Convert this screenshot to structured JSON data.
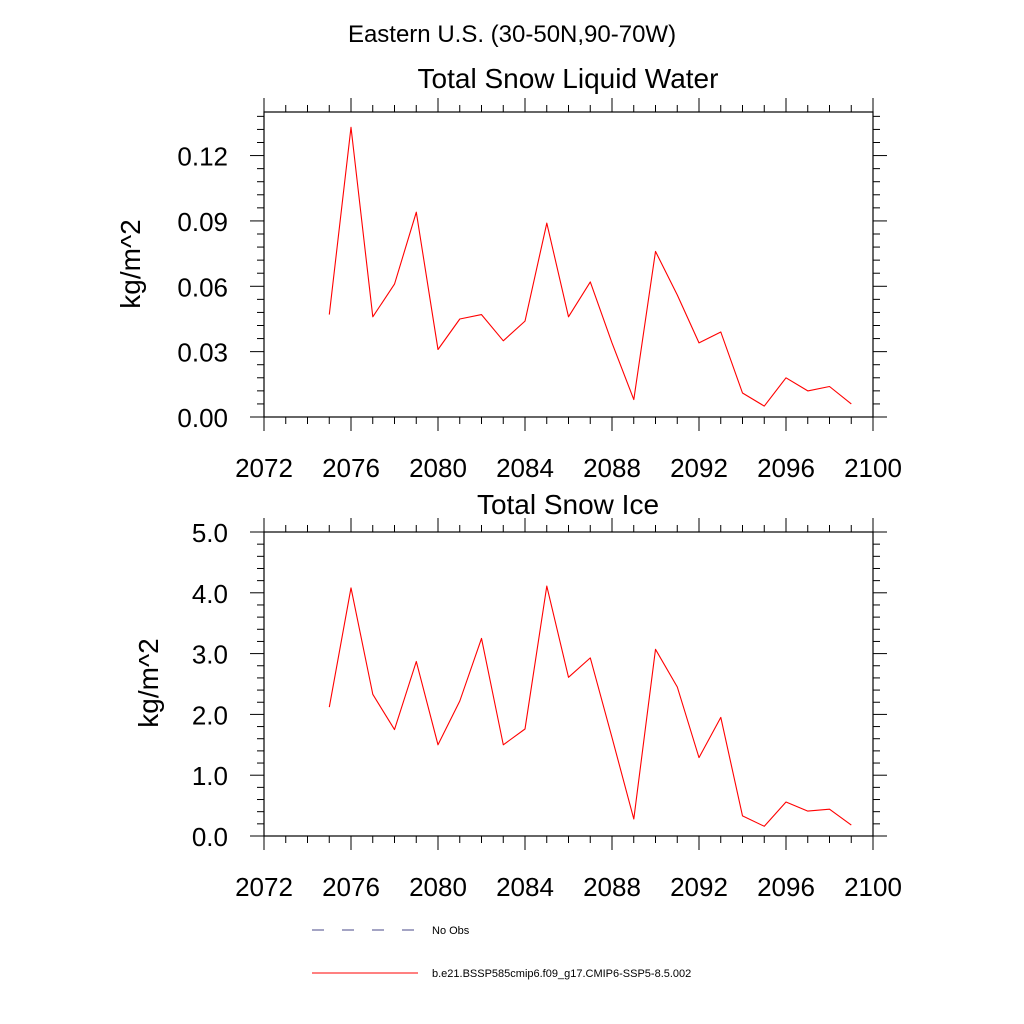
{
  "suptitle": "Eastern U.S. (30-50N,90-70W)",
  "chart_data": [
    {
      "type": "line",
      "title": "Total Snow Liquid Water",
      "ylabel": "kg/m^2",
      "xlabel": "",
      "xlim": [
        2072,
        2100
      ],
      "ylim": [
        0,
        0.14
      ],
      "xticks": [
        2072,
        2076,
        2080,
        2084,
        2088,
        2092,
        2096,
        2100
      ],
      "xtick_labels": [
        "2072",
        "2076",
        "2080",
        "2084",
        "2088",
        "2092",
        "2096",
        "2100"
      ],
      "yticks": [
        0,
        0.03,
        0.06,
        0.09,
        0.12
      ],
      "ytick_labels": [
        "0.00",
        "0.03",
        "0.06",
        "0.09",
        "0.12"
      ],
      "x": [
        2075,
        2076,
        2077,
        2078,
        2079,
        2080,
        2081,
        2082,
        2083,
        2084,
        2085,
        2086,
        2087,
        2088,
        2089,
        2090,
        2091,
        2092,
        2093,
        2094,
        2095,
        2096,
        2097,
        2098,
        2099
      ],
      "series": [
        {
          "name": "b.e21.BSSP585cmip6.f09_g17.CMIP6-SSP5-8.5.002",
          "color": "#ff0000",
          "values": [
            0.047,
            0.133,
            0.046,
            0.061,
            0.094,
            0.031,
            0.045,
            0.047,
            0.035,
            0.044,
            0.089,
            0.046,
            0.062,
            0.034,
            0.008,
            0.076,
            0.056,
            0.034,
            0.039,
            0.011,
            0.005,
            0.018,
            0.012,
            0.014,
            0.006
          ]
        }
      ]
    },
    {
      "type": "line",
      "title": "Total Snow Ice",
      "ylabel": "kg/m^2",
      "xlabel": "",
      "xlim": [
        2072,
        2100
      ],
      "ylim": [
        0,
        5
      ],
      "xticks": [
        2072,
        2076,
        2080,
        2084,
        2088,
        2092,
        2096,
        2100
      ],
      "xtick_labels": [
        "2072",
        "2076",
        "2080",
        "2084",
        "2088",
        "2092",
        "2096",
        "2100"
      ],
      "yticks": [
        0,
        1,
        2,
        3,
        4,
        5
      ],
      "ytick_labels": [
        "0.0",
        "1.0",
        "2.0",
        "3.0",
        "4.0",
        "5.0"
      ],
      "x": [
        2075,
        2076,
        2077,
        2078,
        2079,
        2080,
        2081,
        2082,
        2083,
        2084,
        2085,
        2086,
        2087,
        2088,
        2089,
        2090,
        2091,
        2092,
        2093,
        2094,
        2095,
        2096,
        2097,
        2098,
        2099
      ],
      "series": [
        {
          "name": "b.e21.BSSP585cmip6.f09_g17.CMIP6-SSP5-8.5.002",
          "color": "#ff0000",
          "values": [
            2.12,
            4.08,
            2.33,
            1.75,
            2.87,
            1.5,
            2.22,
            3.25,
            1.5,
            1.76,
            4.11,
            2.61,
            2.93,
            1.62,
            0.28,
            3.07,
            2.45,
            1.29,
            1.95,
            0.33,
            0.16,
            0.56,
            0.41,
            0.44,
            0.18
          ]
        }
      ]
    }
  ],
  "legend": [
    {
      "label": "No Obs",
      "color": "#4a4a8a",
      "style": "dashed"
    },
    {
      "label": "b.e21.BSSP585cmip6.f09_g17.CMIP6-SSP5-8.5.002",
      "color": "#ff0000",
      "style": "solid"
    }
  ]
}
